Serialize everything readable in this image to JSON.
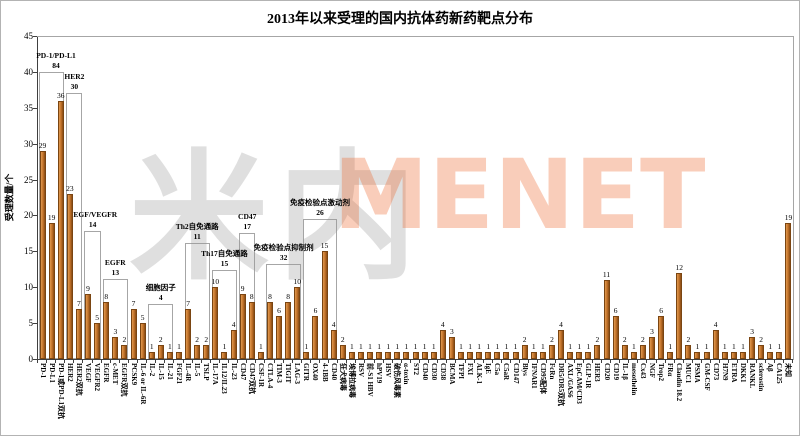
{
  "chart_data": {
    "type": "bar",
    "title": "2013年以来受理的国内抗体药新药靶点分布",
    "ylabel": "受理数量/个",
    "xlabel": "",
    "ylim": [
      0,
      45
    ],
    "yticks": [
      0,
      5,
      10,
      15,
      20,
      25,
      30,
      35,
      40,
      45
    ],
    "grid": false,
    "legend": "none",
    "colors": {
      "bar": "#C4732A",
      "bar_highlight": "#E09A50",
      "bar_shadow": "#8A4D15",
      "bar_border": "#7A4512",
      "axis": "#404040",
      "group_box_border": "#A6A6A6",
      "watermark_gray": "#969696",
      "watermark_orange": "#EB6428"
    },
    "categories": [
      "PD-1",
      "PD-L1",
      "PD-1或PD-L1双抗",
      "HER2",
      "HER2双抗",
      "VEGF",
      "VEGFR2",
      "EGFR",
      "c-MET",
      "EGFR双抗",
      "PCSK9",
      "IL-6 or IL-6R",
      "IL-2",
      "IL-15",
      "IL-21",
      "FGF21",
      "IL-4R",
      "IL-5",
      "TSLP",
      "IL-17A",
      "IL12/IL23",
      "IL-23",
      "CD47",
      "CD47双抗",
      "CSF-1R",
      "CTLA-4",
      "TIM-3",
      "TIGIT",
      "LAG-3",
      "GITR",
      "OX40",
      "4-1BB",
      "CD40",
      "狂犬病毒",
      "埃博拉病毒",
      "RSV",
      "前-S1 HBV",
      "hPV19",
      "HSV",
      "破伤风毒素",
      "α-toxin",
      "ST2",
      "CD40",
      "CD30",
      "CD38",
      "BCMA",
      "TFPI",
      "FXI",
      "ALK-1",
      "IgE",
      "C5a",
      "C5aR",
      "CD147",
      "Blys",
      "IFNAR1",
      "CD95配体",
      "FcRn",
      "DR5/DR5双抗",
      "AXL/GAS6",
      "EpCAM/CD3",
      "GLP-1R",
      "HER3",
      "CD20",
      "CD19",
      "IL-1β",
      "mesothelin",
      "Cx43",
      "NGF",
      "Trop2",
      "FRα",
      "Claudin 18.2",
      "MUC1",
      "PSMA",
      "GM-CSF",
      "CD73",
      "H7N9",
      "ETRA",
      "DKK1",
      "RANKL",
      "sclerostin",
      "Aβ",
      "CA125",
      "未知"
    ],
    "values": [
      29,
      19,
      36,
      23,
      7,
      9,
      5,
      8,
      3,
      2,
      7,
      5,
      1,
      2,
      1,
      1,
      7,
      2,
      2,
      10,
      1,
      4,
      9,
      8,
      1,
      8,
      6,
      8,
      10,
      1,
      6,
      15,
      4,
      2,
      1,
      1,
      1,
      1,
      1,
      1,
      1,
      1,
      1,
      1,
      4,
      3,
      1,
      1,
      1,
      1,
      1,
      1,
      1,
      2,
      1,
      1,
      2,
      4,
      1,
      1,
      1,
      2,
      11,
      6,
      2,
      1,
      2,
      3,
      6,
      1,
      12,
      2,
      1,
      1,
      4,
      1,
      1,
      1,
      3,
      2,
      1,
      1,
      19
    ],
    "groups": [
      {
        "label": "PD-1/PD-L1",
        "total": 84,
        "from": 0,
        "to": 2,
        "box_top": 40
      },
      {
        "label": "HER2",
        "total": 30,
        "from": 3,
        "to": 4,
        "box_top": 37
      },
      {
        "label": "VEGF/VEGFR",
        "total": 14,
        "from": 5,
        "to": 6,
        "box_top": 17.8
      },
      {
        "label": "EGFR",
        "total": 13,
        "from": 7,
        "to": 9,
        "box_top": 11.2
      },
      {
        "label": "细胞因子",
        "total": 4,
        "from": 12,
        "to": 14,
        "box_top": 7.7
      },
      {
        "label": "Th2自免通路",
        "total": 11,
        "from": 16,
        "to": 18,
        "box_top": 16.2
      },
      {
        "label": "Th17自免通路",
        "total": 15,
        "from": 19,
        "to": 21,
        "box_top": 12.4
      },
      {
        "label": "CD47",
        "total": 17,
        "from": 22,
        "to": 23,
        "box_top": 17.5
      },
      {
        "label": "免疫检验点抑制剂",
        "total": 32,
        "from": 25,
        "to": 28,
        "box_top": 13.2
      },
      {
        "label": "免疫检验点激动剂",
        "total": 26,
        "from": 29,
        "to": 32,
        "box_top": 19.5
      }
    ],
    "watermark": {
      "cn": "米内",
      "en": "MENET"
    }
  }
}
